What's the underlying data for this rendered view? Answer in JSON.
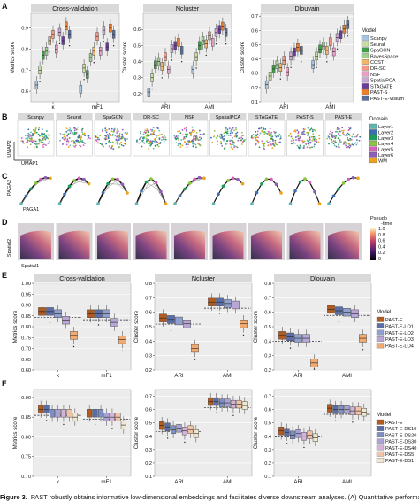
{
  "panels": {
    "A": {
      "letter": "A",
      "titles": [
        "Cross-validation",
        "Ncluster",
        "Dlouvain"
      ],
      "ylabels": [
        "Metrics score",
        "Cluster score",
        "Cluster score"
      ],
      "yticks": [
        [
          "0.9",
          "0.8",
          "0.7",
          "0.6"
        ],
        [
          "0.6",
          "0.5",
          "0.4",
          "0.3",
          "0.2"
        ],
        [
          "0.7",
          "0.6",
          "0.5",
          "0.4",
          "0.3",
          "0.2",
          "0.1"
        ]
      ],
      "xticks": [
        [
          "κ",
          "mF1"
        ],
        [
          "ARI",
          "AMI"
        ],
        [
          "ARI",
          "AMI"
        ]
      ],
      "legend_title": "Model",
      "legend": [
        {
          "label": "Scanpy",
          "color": "#a8c4de"
        },
        {
          "label": "Seurat",
          "color": "#c6dfa0"
        },
        {
          "label": "SpaGCN",
          "color": "#3f9e46"
        },
        {
          "label": "BayesSpace",
          "color": "#9fcf8e"
        },
        {
          "label": "CCST",
          "color": "#f2b66a"
        },
        {
          "label": "DR-SC",
          "color": "#f39a86"
        },
        {
          "label": "NSF",
          "color": "#e8a0c6"
        },
        {
          "label": "SpatialPCA",
          "color": "#c9a8d6"
        },
        {
          "label": "STAGATE",
          "color": "#6a3e98"
        },
        {
          "label": "PAST-S",
          "color": "#ef7d2a"
        },
        {
          "label": "PAST-E-Visium",
          "color": "#5b6f9c"
        }
      ]
    },
    "B": {
      "letter": "B",
      "titles": [
        "Scanpy",
        "Seurat",
        "SpaGCN",
        "DR-SC",
        "NSF",
        "SpatialPCA",
        "STAGATE",
        "PAST-S",
        "PAST-E"
      ],
      "ylabel": "UMAP2",
      "xlabel": "UMAP1",
      "legend_title": "Domain",
      "legend": [
        {
          "label": "Layer1",
          "color": "#5fb7b1"
        },
        {
          "label": "Layer2",
          "color": "#3a6fb0"
        },
        {
          "label": "Layer3",
          "color": "#1b9e5a"
        },
        {
          "label": "Layer4",
          "color": "#8cc63f"
        },
        {
          "label": "Layer5",
          "color": "#d95fbd"
        },
        {
          "label": "Layer6",
          "color": "#8e5fb8"
        },
        {
          "label": "WM",
          "color": "#f0a21b"
        }
      ]
    },
    "C": {
      "letter": "C",
      "ylabel": "PAGA2",
      "xlabel": "PAGA1"
    },
    "D": {
      "letter": "D",
      "ylabel": "Spatial2",
      "xlabel": "Spatial1",
      "cbar_title": "Pseudo -time",
      "cbar_ticks": [
        "1.0",
        "0.8",
        "0.6",
        "0.4",
        "0.2",
        "0"
      ]
    },
    "E": {
      "letter": "E",
      "titles": [
        "Cross-validation",
        "Ncluster",
        "Dlouvain"
      ],
      "ylabels": [
        "Metrics score",
        "Cluster score",
        "Cluster score"
      ],
      "yticks": [
        [
          "1.00",
          "0.95",
          "0.90",
          "0.85",
          "0.80",
          "0.75",
          "0.70",
          "0.65",
          "0.60"
        ],
        [
          "0.8",
          "0.7",
          "0.6",
          "0.5",
          "0.4",
          "0.3",
          "0.2"
        ],
        [
          "0.8",
          "0.7",
          "0.6",
          "0.5",
          "0.4",
          "0.3",
          "0.2"
        ]
      ],
      "xticks": [
        [
          "κ",
          "mF1"
        ],
        [
          "ARI",
          "AMI"
        ],
        [
          "ARI",
          "AMI"
        ]
      ],
      "legend_title": "Model",
      "legend": [
        {
          "label": "PAST-E",
          "color": "#b35a1f"
        },
        {
          "label": "PAST-E-LO1",
          "color": "#5b6ea8"
        },
        {
          "label": "PAST-E-LO2",
          "color": "#8f9fcf"
        },
        {
          "label": "PAST-E-LO3",
          "color": "#b7a6d6"
        },
        {
          "label": "PAST-E-LO4",
          "color": "#f2aa6e"
        }
      ]
    },
    "F": {
      "letter": "F",
      "titles": [
        "",
        "",
        ""
      ],
      "ylabels": [
        "Metrics score",
        "Cluster score",
        "Cluster score"
      ],
      "yticks": [
        [
          "0.90",
          "0.85",
          "0.80",
          "0.75",
          "0.70"
        ],
        [
          "0.7",
          "0.6",
          "0.5",
          "0.4",
          "0.3",
          "0.2",
          "0.1"
        ],
        [
          "0.7",
          "0.6",
          "0.5",
          "0.4",
          "0.3",
          "0.2",
          "0.1"
        ]
      ],
      "xticks": [
        [
          "κ",
          "mF1"
        ],
        [
          "ARI",
          "AMI"
        ],
        [
          "ARI",
          "AMI"
        ]
      ],
      "legend_title": "Model",
      "legend": [
        {
          "label": "PAST-E",
          "color": "#b35a1f"
        },
        {
          "label": "PAST-E-DS10",
          "color": "#5b6ea8"
        },
        {
          "label": "PAST-E-DS20",
          "color": "#7f8fc4"
        },
        {
          "label": "PAST-E-DS30",
          "color": "#a9a3d3"
        },
        {
          "label": "PAST-E-DS40",
          "color": "#d3b4d8"
        },
        {
          "label": "PAST-E-DS5",
          "color": "#f2c3a6"
        },
        {
          "label": "PAST-E-DS1",
          "color": "#efe7cf"
        }
      ]
    }
  },
  "caption": {
    "prefix": "Figure 3.",
    "text": "PAST robustly obtains informative low-dimensional embeddings and facilitates diverse downstream analyses. (A) Quantitative performance"
  },
  "chart_data": [
    {
      "type": "box",
      "panel": "A",
      "title": "Cross-validation",
      "ylabel": "Metrics score",
      "ylim": [
        0.55,
        0.97
      ],
      "categories": [
        "κ",
        "mF1"
      ],
      "series": [
        {
          "name": "Scanpy",
          "values": [
            0.63,
            0.61
          ]
        },
        {
          "name": "Seurat",
          "values": [
            0.7,
            0.71
          ]
        },
        {
          "name": "SpaGCN",
          "values": [
            0.77,
            0.68
          ]
        },
        {
          "name": "BayesSpace",
          "values": [
            0.79,
            0.76
          ]
        },
        {
          "name": "CCST",
          "values": [
            0.84,
            0.79
          ]
        },
        {
          "name": "DR-SC",
          "values": [
            0.87,
            0.86
          ]
        },
        {
          "name": "NSF",
          "values": [
            0.8,
            0.79
          ]
        },
        {
          "name": "SpatialPCA",
          "values": [
            0.88,
            0.89
          ]
        },
        {
          "name": "STAGATE",
          "values": [
            0.84,
            0.81
          ]
        },
        {
          "name": "PAST-S",
          "values": [
            0.91,
            0.9
          ]
        },
        {
          "name": "PAST-E-Visium",
          "values": [
            0.87,
            0.87
          ]
        }
      ]
    },
    {
      "type": "box",
      "panel": "A",
      "title": "Ncluster",
      "ylabel": "Cluster score",
      "ylim": [
        0.15,
        0.7
      ],
      "categories": [
        "ARI",
        "AMI"
      ],
      "series": [
        {
          "name": "Scanpy",
          "values": [
            0.21,
            0.35
          ]
        },
        {
          "name": "Seurat",
          "values": [
            0.3,
            0.43
          ]
        },
        {
          "name": "SpaGCN",
          "values": [
            0.38,
            0.5
          ]
        },
        {
          "name": "BayesSpace",
          "values": [
            0.4,
            0.53
          ]
        },
        {
          "name": "CCST",
          "values": [
            0.37,
            0.51
          ]
        },
        {
          "name": "DR-SC",
          "values": [
            0.43,
            0.56
          ]
        },
        {
          "name": "NSF",
          "values": [
            0.35,
            0.52
          ]
        },
        {
          "name": "SpatialPCA",
          "values": [
            0.48,
            0.58
          ]
        },
        {
          "name": "STAGATE",
          "values": [
            0.5,
            0.6
          ]
        },
        {
          "name": "PAST-S",
          "values": [
            0.52,
            0.62
          ]
        },
        {
          "name": "PAST-E-Visium",
          "values": [
            0.47,
            0.58
          ]
        }
      ]
    },
    {
      "type": "box",
      "panel": "A",
      "title": "Dlouvain",
      "ylabel": "Cluster score",
      "ylim": [
        0.1,
        0.72
      ],
      "categories": [
        "ARI",
        "AMI"
      ],
      "series": [
        {
          "name": "Scanpy",
          "values": [
            0.22,
            0.36
          ]
        },
        {
          "name": "Seurat",
          "values": [
            0.28,
            0.42
          ]
        },
        {
          "name": "SpaGCN",
          "values": [
            0.33,
            0.47
          ]
        },
        {
          "name": "BayesSpace",
          "values": [
            0.36,
            0.49
          ]
        },
        {
          "name": "CCST",
          "values": [
            0.34,
            0.46
          ]
        },
        {
          "name": "DR-SC",
          "values": [
            0.39,
            0.52
          ]
        },
        {
          "name": "NSF",
          "values": [
            0.31,
            0.45
          ]
        },
        {
          "name": "SpatialPCA",
          "values": [
            0.42,
            0.55
          ]
        },
        {
          "name": "STAGATE",
          "values": [
            0.45,
            0.57
          ]
        },
        {
          "name": "PAST-S",
          "values": [
            0.48,
            0.61
          ]
        },
        {
          "name": "PAST-E-Visium",
          "values": [
            0.46,
            0.64
          ]
        }
      ]
    },
    {
      "type": "box",
      "panel": "E",
      "title": "Cross-validation",
      "ylabel": "Metrics score",
      "ylim": [
        0.6,
        1.0
      ],
      "categories": [
        "κ",
        "mF1"
      ],
      "series": [
        {
          "name": "PAST-E",
          "values": [
            0.87,
            0.86
          ]
        },
        {
          "name": "PAST-E-LO1",
          "values": [
            0.87,
            0.86
          ]
        },
        {
          "name": "PAST-E-LO2",
          "values": [
            0.86,
            0.86
          ]
        },
        {
          "name": "PAST-E-LO3",
          "values": [
            0.83,
            0.82
          ]
        },
        {
          "name": "PAST-E-LO4",
          "values": [
            0.76,
            0.74
          ]
        }
      ]
    },
    {
      "type": "box",
      "panel": "E",
      "title": "Ncluster",
      "ylabel": "Cluster score",
      "ylim": [
        0.2,
        0.8
      ],
      "categories": [
        "ARI",
        "AMI"
      ],
      "series": [
        {
          "name": "PAST-E",
          "values": [
            0.56,
            0.67
          ]
        },
        {
          "name": "PAST-E-LO1",
          "values": [
            0.55,
            0.67
          ]
        },
        {
          "name": "PAST-E-LO2",
          "values": [
            0.54,
            0.66
          ]
        },
        {
          "name": "PAST-E-LO3",
          "values": [
            0.52,
            0.65
          ]
        },
        {
          "name": "PAST-E-LO4",
          "values": [
            0.35,
            0.52
          ]
        }
      ]
    },
    {
      "type": "box",
      "panel": "E",
      "title": "Dlouvain",
      "ylabel": "Cluster score",
      "ylim": [
        0.2,
        0.8
      ],
      "categories": [
        "ARI",
        "AMI"
      ],
      "series": [
        {
          "name": "PAST-E",
          "values": [
            0.44,
            0.62
          ]
        },
        {
          "name": "PAST-E-LO1",
          "values": [
            0.43,
            0.61
          ]
        },
        {
          "name": "PAST-E-LO2",
          "values": [
            0.42,
            0.6
          ]
        },
        {
          "name": "PAST-E-LO3",
          "values": [
            0.42,
            0.59
          ]
        },
        {
          "name": "PAST-E-LO4",
          "values": [
            0.25,
            0.42
          ]
        }
      ]
    },
    {
      "type": "box",
      "panel": "F",
      "title": "",
      "ylabel": "Metrics score",
      "ylim": [
        0.7,
        0.92
      ],
      "categories": [
        "κ",
        "mF1"
      ],
      "series": [
        {
          "name": "PAST-E",
          "values": [
            0.87,
            0.86
          ]
        },
        {
          "name": "PAST-E-DS10",
          "values": [
            0.87,
            0.86
          ]
        },
        {
          "name": "PAST-E-DS20",
          "values": [
            0.86,
            0.86
          ]
        },
        {
          "name": "PAST-E-DS30",
          "values": [
            0.86,
            0.85
          ]
        },
        {
          "name": "PAST-E-DS40",
          "values": [
            0.86,
            0.85
          ]
        },
        {
          "name": "PAST-E-DS5",
          "values": [
            0.86,
            0.85
          ]
        },
        {
          "name": "PAST-E-DS1",
          "values": [
            0.85,
            0.83
          ]
        }
      ]
    },
    {
      "type": "box",
      "panel": "F",
      "title": "",
      "ylabel": "Cluster score",
      "ylim": [
        0.1,
        0.75
      ],
      "categories": [
        "ARI",
        "AMI"
      ],
      "series": [
        {
          "name": "PAST-E",
          "values": [
            0.48,
            0.66
          ]
        },
        {
          "name": "PAST-E-DS10",
          "values": [
            0.47,
            0.66
          ]
        },
        {
          "name": "PAST-E-DS20",
          "values": [
            0.45,
            0.65
          ]
        },
        {
          "name": "PAST-E-DS30",
          "values": [
            0.46,
            0.65
          ]
        },
        {
          "name": "PAST-E-DS40",
          "values": [
            0.44,
            0.64
          ]
        },
        {
          "name": "PAST-E-DS5",
          "values": [
            0.45,
            0.64
          ]
        },
        {
          "name": "PAST-E-DS1",
          "values": [
            0.42,
            0.63
          ]
        }
      ]
    },
    {
      "type": "box",
      "panel": "F",
      "title": "",
      "ylabel": "Cluster score",
      "ylim": [
        0.1,
        0.75
      ],
      "categories": [
        "ARI",
        "AMI"
      ],
      "series": [
        {
          "name": "PAST-E",
          "values": [
            0.44,
            0.61
          ]
        },
        {
          "name": "PAST-E-DS10",
          "values": [
            0.43,
            0.6
          ]
        },
        {
          "name": "PAST-E-DS20",
          "values": [
            0.41,
            0.6
          ]
        },
        {
          "name": "PAST-E-DS30",
          "values": [
            0.42,
            0.6
          ]
        },
        {
          "name": "PAST-E-DS40",
          "values": [
            0.4,
            0.59
          ]
        },
        {
          "name": "PAST-E-DS5",
          "values": [
            0.41,
            0.59
          ]
        },
        {
          "name": "PAST-E-DS1",
          "values": [
            0.39,
            0.58
          ]
        }
      ]
    }
  ]
}
